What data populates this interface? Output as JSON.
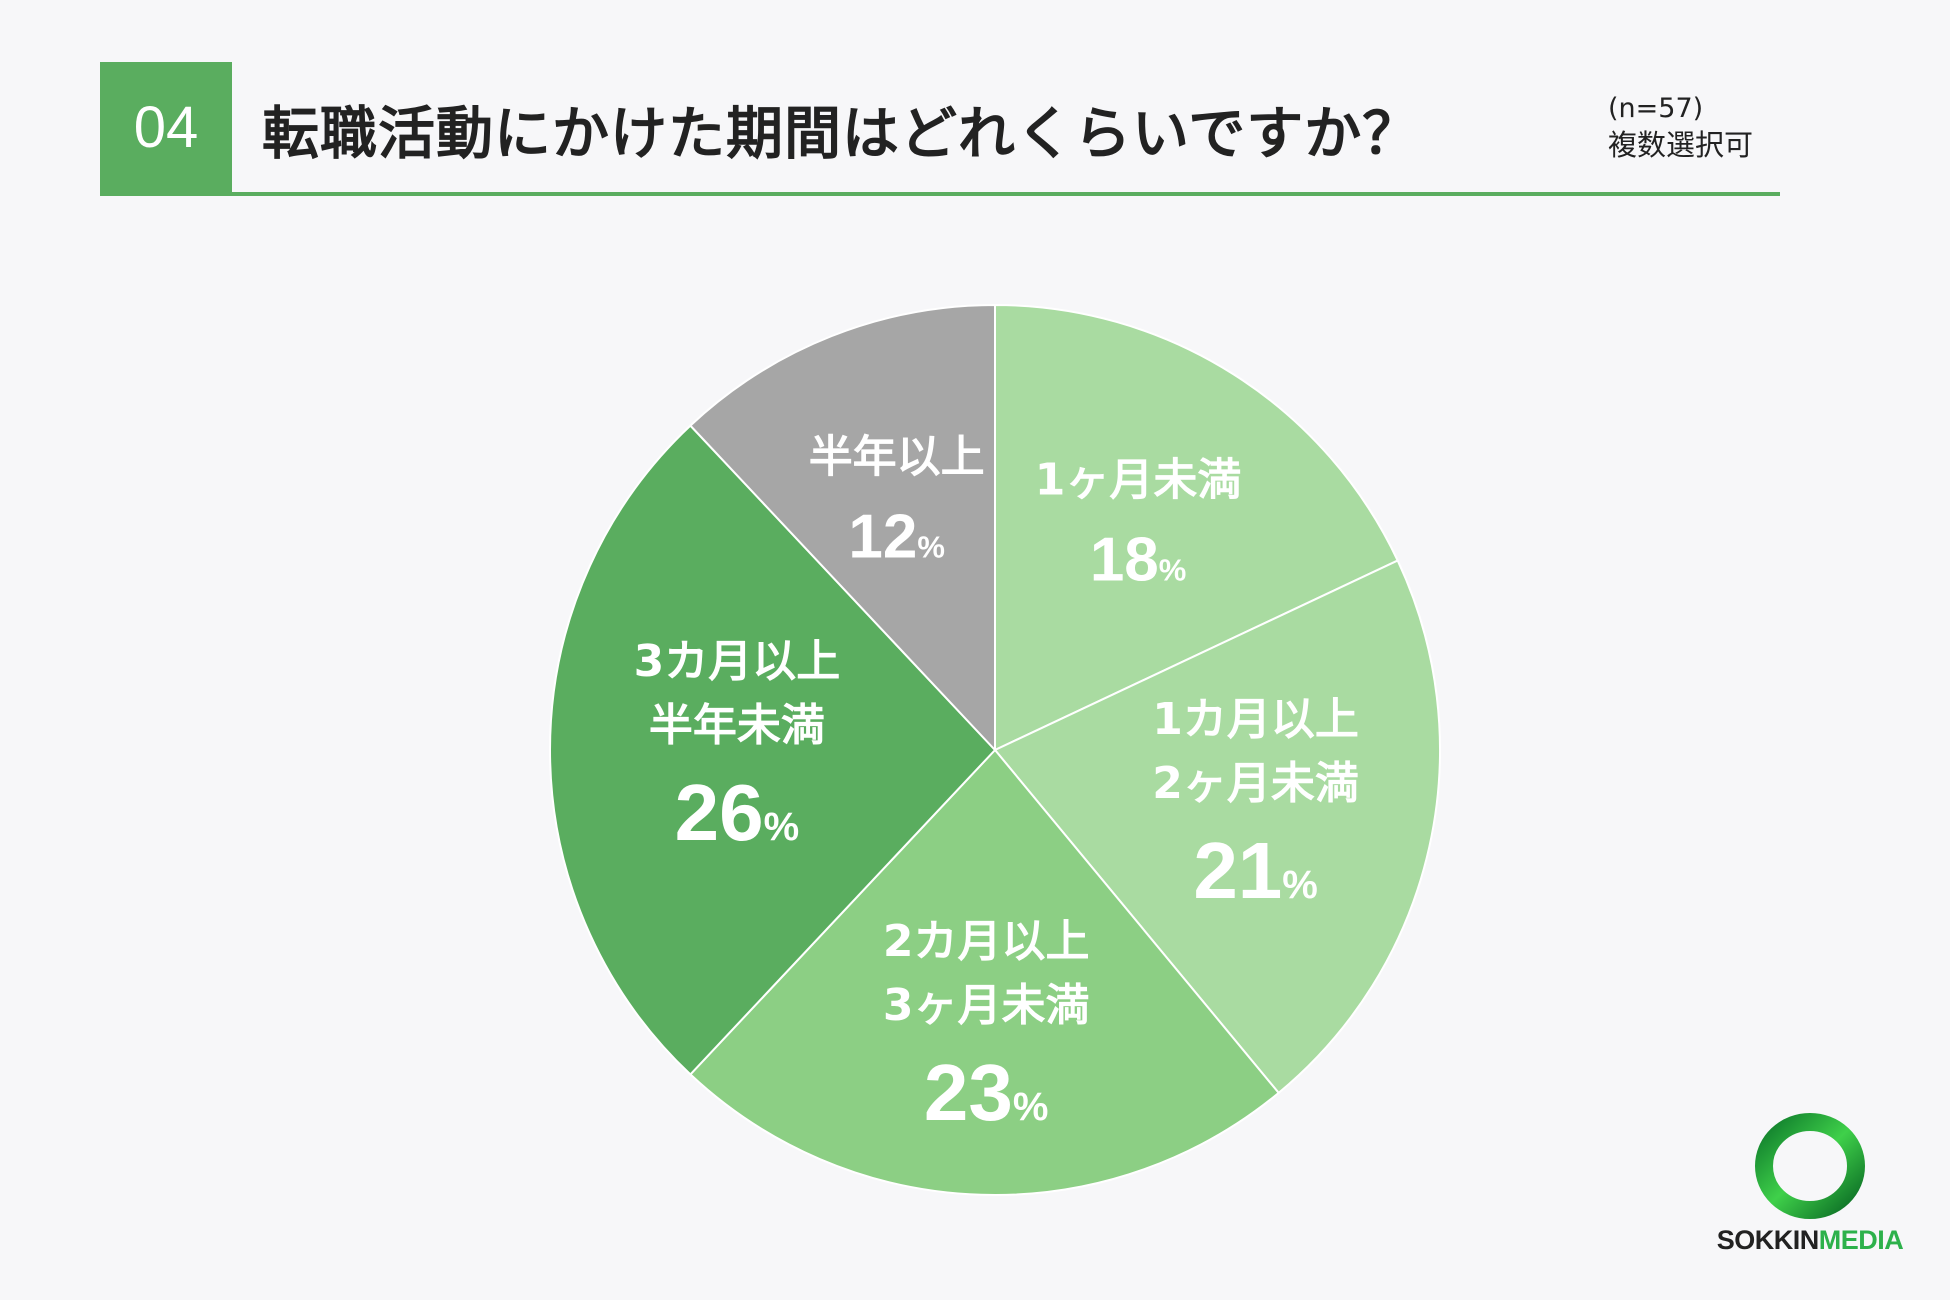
{
  "header": {
    "number": "04",
    "title": "転職活動にかけた期間はどれくらいですか？",
    "sample": "(n=57)",
    "note": "複数選択可"
  },
  "chart_data": {
    "type": "pie",
    "unit": "%",
    "categories": [
      "1ヶ月未満",
      "1カ月以上2ヶ月未満",
      "2カ月以上3ヶ月未満",
      "3カ月以上半年未満",
      "半年以上"
    ],
    "label_lines": [
      [
        "1ヶ月未満"
      ],
      [
        "1カ月以上",
        "2ヶ月未満"
      ],
      [
        "2カ月以上",
        "3ヶ月未満"
      ],
      [
        "3カ月以上",
        "半年未満"
      ],
      [
        "半年以上"
      ]
    ],
    "values": [
      18,
      21,
      23,
      26,
      12
    ],
    "colors": [
      "#a9dba1",
      "#a9dba1",
      "#8ccf84",
      "#5aad5f",
      "#a6a6a6"
    ]
  },
  "logo": {
    "part1": "SOKKIN",
    "part2": "MEDIA"
  }
}
